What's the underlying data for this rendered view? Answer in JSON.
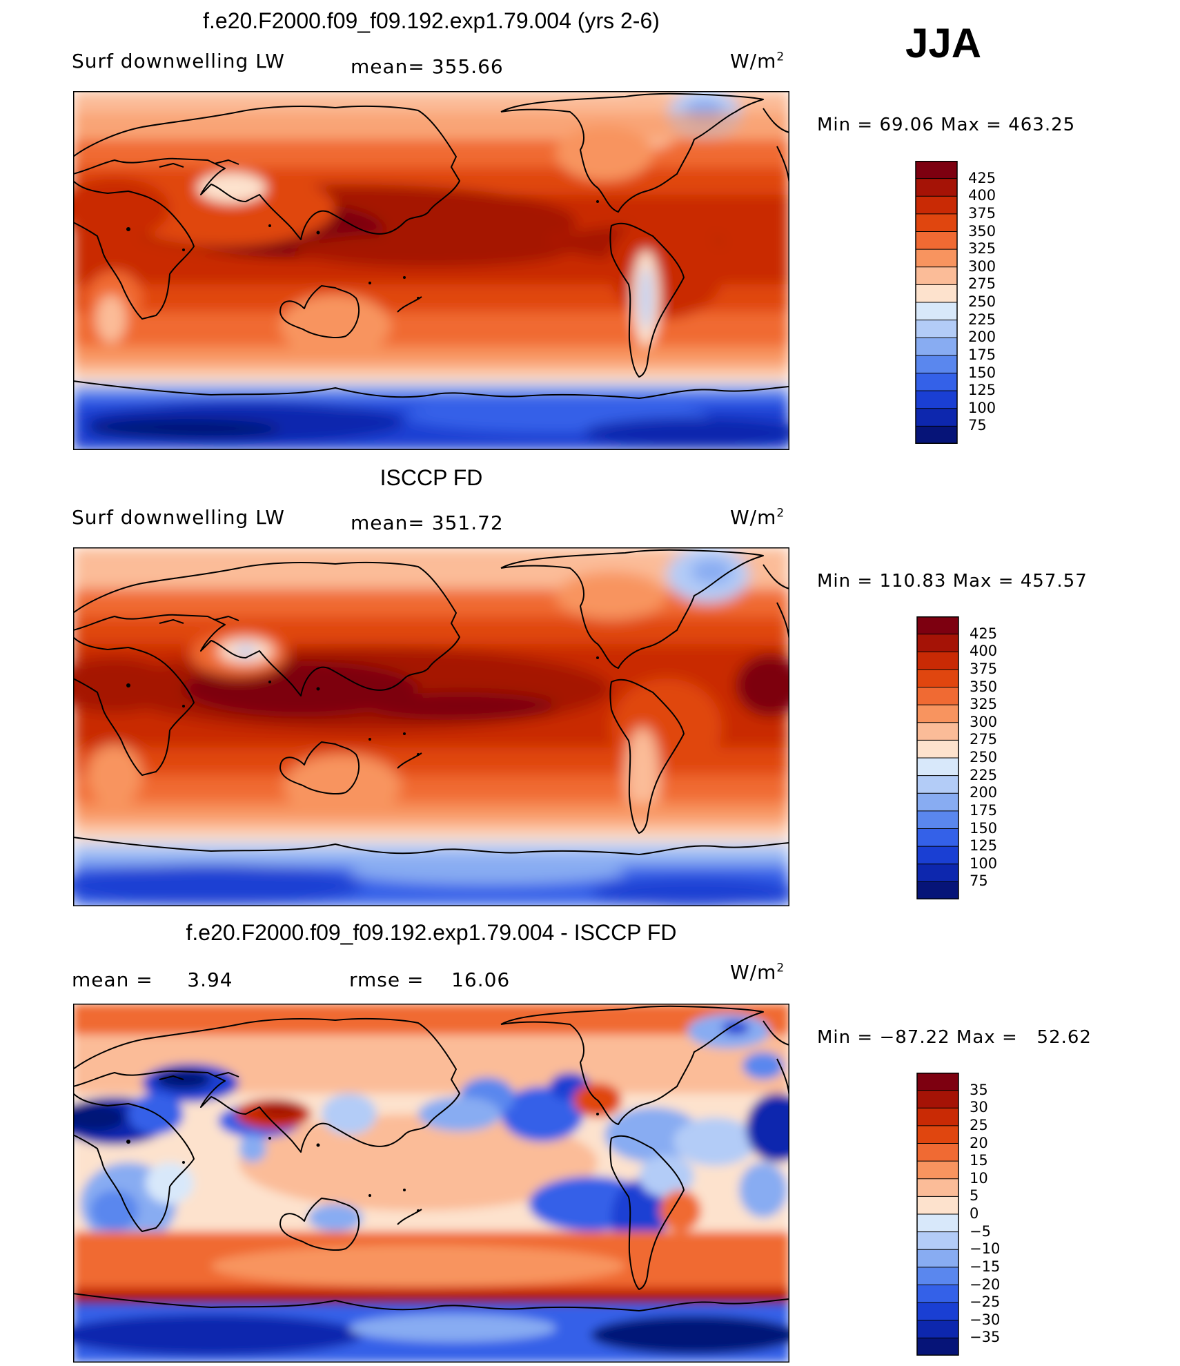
{
  "season": "JJA",
  "units": "W/m",
  "units_sup": "2",
  "panels": [
    {
      "title": "f.e20.F2000.f09_f09.192.exp1.79.004 (yrs 2-6)",
      "left_label": "Surf downwelling LW",
      "stat_label": "mean= 355.66",
      "min_max": "Min =   69.06 Max = 463.25",
      "levels": [
        "425",
        "400",
        "375",
        "350",
        "325",
        "300",
        "275",
        "250",
        "225",
        "200",
        "175",
        "150",
        "125",
        "100",
        "75"
      ],
      "colors": [
        "#7d0010",
        "#a51306",
        "#c92a05",
        "#e0460f",
        "#f06a33",
        "#f8945f",
        "#fbbc98",
        "#fde2cd",
        "#d8e8fa",
        "#b3ccf7",
        "#88acf2",
        "#5a87ee",
        "#3461e8",
        "#1a3fd3",
        "#0d27ae",
        "#061478"
      ]
    },
    {
      "title": "ISCCP FD",
      "left_label": "Surf downwelling LW",
      "stat_label": "mean= 351.72",
      "min_max": "Min = 110.83 Max = 457.57",
      "levels": [
        "425",
        "400",
        "375",
        "350",
        "325",
        "300",
        "275",
        "250",
        "225",
        "200",
        "175",
        "150",
        "125",
        "100",
        "75"
      ],
      "colors": [
        "#7d0010",
        "#a51306",
        "#c92a05",
        "#e0460f",
        "#f06a33",
        "#f8945f",
        "#fbbc98",
        "#fde2cd",
        "#d8e8fa",
        "#b3ccf7",
        "#88acf2",
        "#5a87ee",
        "#3461e8",
        "#1a3fd3",
        "#0d27ae",
        "#061478"
      ]
    },
    {
      "title": "f.e20.F2000.f09_f09.192.exp1.79.004 - ISCCP FD",
      "left_label": "mean =     3.94",
      "stat_label": "rmse =    16.06",
      "min_max": "Min = −87.22 Max =   52.62",
      "levels": [
        "35",
        "30",
        "25",
        "20",
        "15",
        "10",
        "5",
        "0",
        "−5",
        "−10",
        "−15",
        "−20",
        "−25",
        "−30",
        "−35"
      ],
      "colors": [
        "#7d0010",
        "#a51306",
        "#c92a05",
        "#e0460f",
        "#f06a33",
        "#f8945f",
        "#fbbc98",
        "#fde2cd",
        "#d8e8fa",
        "#b3ccf7",
        "#88acf2",
        "#5a87ee",
        "#3461e8",
        "#1a3fd3",
        "#0d27ae",
        "#061478"
      ]
    }
  ]
}
